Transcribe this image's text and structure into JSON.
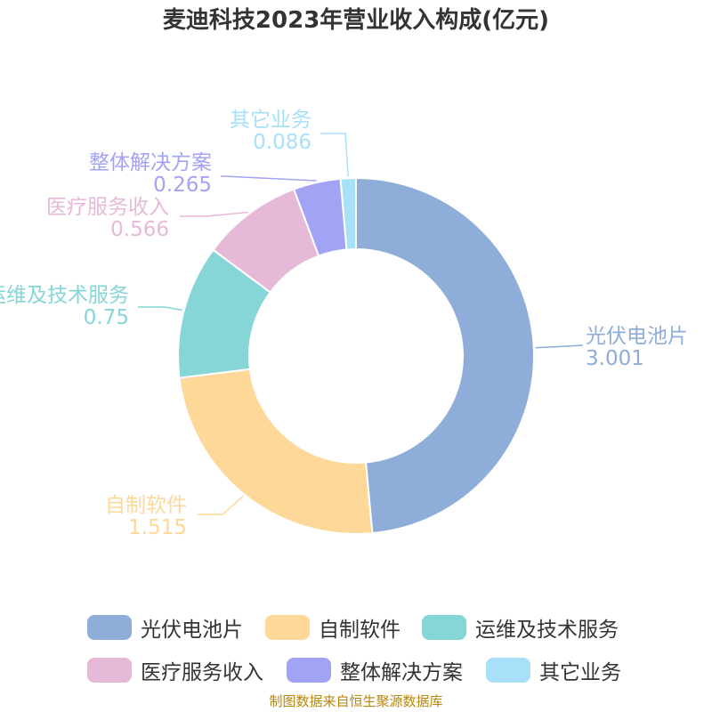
{
  "title": "麦迪科技2023年营业收入构成(亿元)",
  "source": "制图数据来自恒生聚源数据库",
  "chart_data": {
    "type": "pie",
    "variant": "donut",
    "title": "麦迪科技2023年营业收入构成(亿元)",
    "series": [
      {
        "name": "光伏电池片",
        "value": 3.001,
        "color": "#8eadd9"
      },
      {
        "name": "自制软件",
        "value": 1.515,
        "color": "#fdd899"
      },
      {
        "name": "运维及技术服务",
        "value": 0.75,
        "color": "#86d6d8"
      },
      {
        "name": "医疗服务收入",
        "value": 0.566,
        "color": "#e6b9d8"
      },
      {
        "name": "整体解决方案",
        "value": 0.265,
        "color": "#a3a3f5"
      },
      {
        "name": "其它业务",
        "value": 0.086,
        "color": "#a8e0f8"
      }
    ],
    "legend_position": "bottom"
  }
}
